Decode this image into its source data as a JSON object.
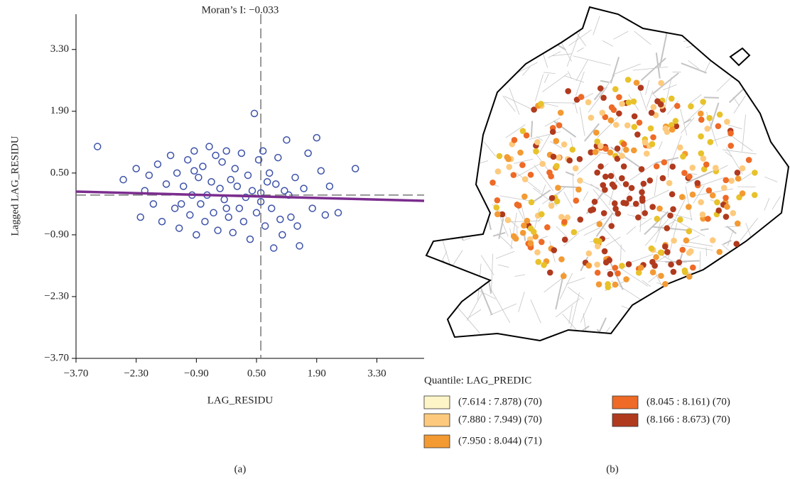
{
  "chart_data": [
    {
      "type": "scatter",
      "title": "Moran’s I: −0.033",
      "x_label": "LAG_RESIDU",
      "y_label": "Lagged LAG_RESIDU",
      "x": [
        -3.2,
        -2.6,
        -2.3,
        -2.2,
        -2.1,
        -2.0,
        -1.9,
        -1.8,
        -1.7,
        -1.6,
        -1.5,
        -1.4,
        -1.35,
        -1.3,
        -1.2,
        -1.1,
        -1.05,
        -1.0,
        -0.95,
        -0.9,
        -0.85,
        -0.8,
        -0.75,
        -0.7,
        -0.6,
        -0.55,
        -0.5,
        -0.45,
        -0.4,
        -0.35,
        -0.3,
        -0.25,
        -0.2,
        -0.15,
        -0.1,
        -0.05,
        0.0,
        0.05,
        0.1,
        0.15,
        0.2,
        0.3,
        0.35,
        0.4,
        0.45,
        0.5,
        0.55,
        0.6,
        0.65,
        0.7,
        0.8,
        0.85,
        0.9,
        0.95,
        1.0,
        1.05,
        1.1,
        1.2,
        1.25,
        1.3,
        1.4,
        1.5,
        1.6,
        1.7,
        1.8,
        1.9,
        2.0,
        2.1,
        2.2,
        2.4,
        2.8,
        -1.25,
        -0.65,
        0.25,
        0.75,
        1.15,
        -0.95,
        -0.2,
        0.6,
        1.45
      ],
      "values": [
        1.1,
        0.35,
        0.6,
        -0.5,
        0.1,
        0.45,
        -0.2,
        0.7,
        -0.6,
        0.25,
        0.9,
        -0.3,
        0.5,
        -0.75,
        0.2,
        0.8,
        -0.45,
        0.0,
        1.0,
        -0.9,
        0.4,
        -0.2,
        0.65,
        -0.6,
        1.1,
        0.3,
        -0.4,
        0.9,
        -0.8,
        0.15,
        0.75,
        -0.1,
        1.0,
        -0.5,
        0.35,
        -0.85,
        0.6,
        0.2,
        -0.3,
        0.95,
        -0.6,
        0.45,
        -1.0,
        0.1,
        1.85,
        -0.4,
        0.8,
        -0.15,
        1.0,
        -0.7,
        0.5,
        -0.3,
        -1.2,
        0.25,
        0.85,
        -0.55,
        -0.9,
        1.25,
        0.0,
        -0.5,
        0.4,
        -1.15,
        0.15,
        0.95,
        -0.3,
        1.3,
        0.55,
        -0.45,
        0.2,
        -0.4,
        0.6,
        -0.2,
        0.0,
        -0.05,
        0.3,
        0.1,
        0.55,
        -0.3,
        0.05,
        -0.7
      ],
      "color": "#3d52a8",
      "xlim": [
        -3.7,
        4.4
      ],
      "ylim": [
        -3.7,
        4.1
      ],
      "xticks": [
        {
          "value": -3.7,
          "label": "−3.70"
        },
        {
          "value": -2.3,
          "label": "−2.30"
        },
        {
          "value": -0.9,
          "label": "−0.90"
        },
        {
          "value": 0.5,
          "label": "0.50"
        },
        {
          "value": 1.9,
          "label": "1.90"
        },
        {
          "value": 3.3,
          "label": "3.30"
        }
      ],
      "yticks": [
        {
          "value": -3.7,
          "label": "−3.70"
        },
        {
          "value": -2.3,
          "label": "−2.30"
        },
        {
          "value": -0.9,
          "label": "−0.90"
        },
        {
          "value": 0.5,
          "label": "0.50"
        },
        {
          "value": 1.9,
          "label": "1.90"
        },
        {
          "value": 3.3,
          "label": "3.30"
        }
      ],
      "reference_lines": {
        "x": 0.6,
        "y": 0.0
      },
      "fit_line": {
        "color": "#7b2d8e",
        "x": [
          -3.7,
          4.4
        ],
        "y": [
          0.08,
          -0.13
        ]
      },
      "caption": "(a)"
    }
  ],
  "map": {
    "legend_title": "Quantile: LAG_PREDIC",
    "classes": [
      {
        "label": "(7.614 : 7.878) (70)",
        "color": "#fdf5c8"
      },
      {
        "label": "(7.880 : 7.949) (70)",
        "color": "#fdca7d"
      },
      {
        "label": "(7.950 : 8.044) (71)",
        "color": "#f39a33"
      },
      {
        "label": "(8.045 : 8.161) (70)",
        "color": "#ee6a26"
      },
      {
        "label": "(8.166 : 8.673) (70)",
        "color": "#b03a1e"
      }
    ],
    "caption": "(b)"
  }
}
